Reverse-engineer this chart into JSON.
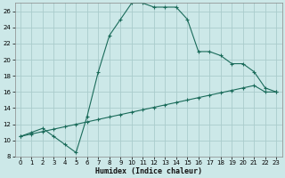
{
  "xlabel": "Humidex (Indice chaleur)",
  "bg_color": "#cce8e8",
  "grid_color": "#aacccc",
  "line_color": "#1a6b5a",
  "xlim": [
    -0.5,
    23.5
  ],
  "ylim": [
    8,
    27
  ],
  "x_ticks": [
    0,
    1,
    2,
    3,
    4,
    5,
    6,
    7,
    8,
    9,
    10,
    11,
    12,
    13,
    14,
    15,
    16,
    17,
    18,
    19,
    20,
    21,
    22,
    23
  ],
  "y_ticks": [
    8,
    10,
    12,
    14,
    16,
    18,
    20,
    22,
    24,
    26
  ],
  "curve1_x": [
    0,
    1,
    2,
    3,
    4,
    5,
    6,
    7,
    8,
    9,
    10,
    11,
    12,
    13,
    14,
    15,
    16,
    17,
    18,
    19,
    20,
    21,
    22,
    23
  ],
  "curve1_y": [
    10.5,
    11.0,
    11.5,
    10.5,
    9.5,
    8.5,
    13.0,
    18.5,
    23.0,
    25.0,
    27.0,
    27.0,
    26.5,
    26.5,
    26.5,
    25.0,
    21.0,
    21.0,
    20.5,
    19.5,
    19.5,
    18.5,
    16.5,
    16.0
  ],
  "curve2_x": [
    0,
    1,
    2,
    3,
    4,
    5,
    6,
    7,
    8,
    9,
    10,
    11,
    12,
    13,
    14,
    15,
    16,
    17,
    18,
    19,
    20,
    21,
    22,
    23
  ],
  "curve2_y": [
    10.5,
    10.8,
    11.1,
    11.4,
    11.7,
    12.0,
    12.3,
    12.6,
    12.9,
    13.2,
    13.5,
    13.8,
    14.1,
    14.4,
    14.7,
    15.0,
    15.3,
    15.6,
    15.9,
    16.2,
    16.5,
    16.8,
    16.0,
    16.0
  ],
  "tick_fontsize": 5.0,
  "xlabel_fontsize": 6.0
}
